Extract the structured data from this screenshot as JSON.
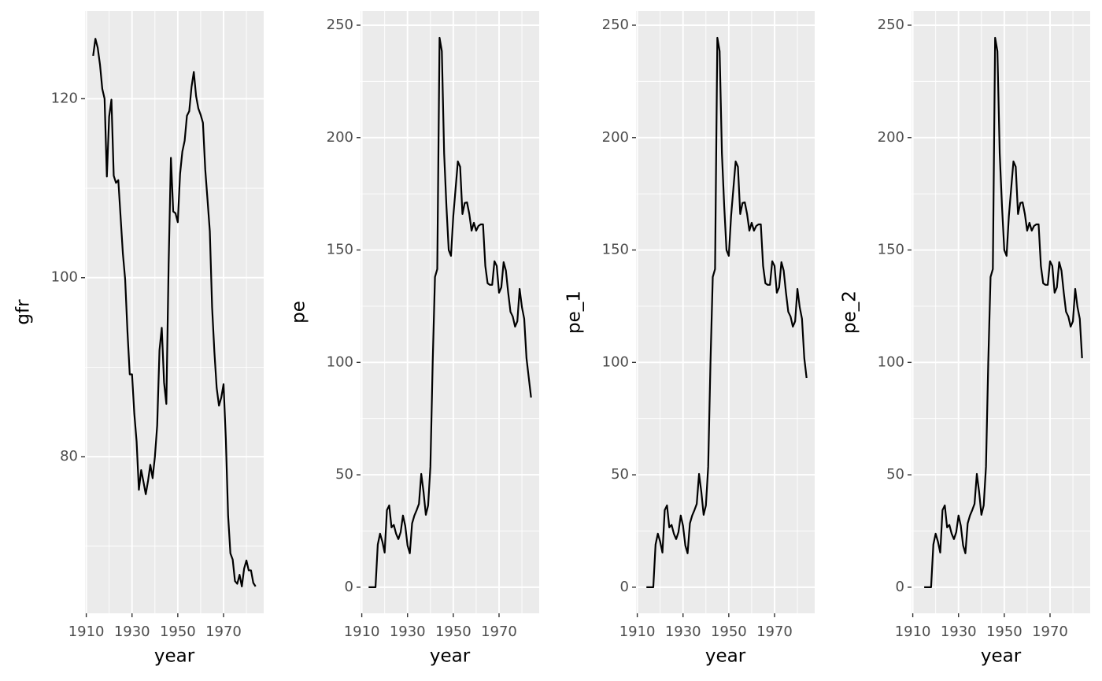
{
  "chart_data": [
    {
      "type": "line",
      "xlabel": "year",
      "ylabel": "gfr",
      "x": [
        1913,
        1914,
        1915,
        1916,
        1917,
        1918,
        1919,
        1920,
        1921,
        1922,
        1923,
        1924,
        1925,
        1926,
        1927,
        1928,
        1929,
        1930,
        1931,
        1932,
        1933,
        1934,
        1935,
        1936,
        1937,
        1938,
        1939,
        1940,
        1941,
        1942,
        1943,
        1944,
        1945,
        1946,
        1947,
        1948,
        1949,
        1950,
        1951,
        1952,
        1953,
        1954,
        1955,
        1956,
        1957,
        1958,
        1959,
        1960,
        1961,
        1962,
        1963,
        1964,
        1965,
        1966,
        1967,
        1968,
        1969,
        1970,
        1971,
        1972,
        1973,
        1974,
        1975,
        1976,
        1977,
        1978,
        1979,
        1980,
        1981,
        1982,
        1983,
        1984
      ],
      "values": [
        124.8,
        126.7,
        125.7,
        123.8,
        121.1,
        120,
        111.3,
        118,
        119.9,
        111.4,
        110.6,
        110.9,
        106.8,
        102.7,
        99.8,
        94,
        89.2,
        89.2,
        84.8,
        81.7,
        76.3,
        78.5,
        77.2,
        75.8,
        77.3,
        79.1,
        77.6,
        80,
        83.5,
        91.9,
        94.4,
        88.3,
        85.9,
        101.5,
        113.4,
        107.4,
        107.2,
        106.2,
        111.6,
        114.1,
        115.3,
        118.1,
        118.6,
        121.3,
        123,
        120.3,
        118.9,
        118.2,
        117.3,
        112.1,
        108.7,
        105.2,
        96.7,
        91.7,
        87.7,
        85.7,
        86.6,
        88.1,
        82,
        73.4,
        69.2,
        68.5,
        66.1,
        65.8,
        66.8,
        65.5,
        67.5,
        68.4,
        67.3,
        67.3,
        65.9,
        65.5
      ],
      "color": "#000000",
      "xlim": [
        1909.45,
        1987.55
      ],
      "xticks": [
        1910,
        1930,
        1950,
        1970
      ],
      "ylim": [
        62.5,
        129.8
      ],
      "yticks": [
        80,
        100,
        120
      ],
      "grid": true
    },
    {
      "type": "line",
      "xlabel": "year",
      "ylabel": "pe",
      "x": [
        1913,
        1914,
        1915,
        1916,
        1917,
        1918,
        1919,
        1920,
        1921,
        1922,
        1923,
        1924,
        1925,
        1926,
        1927,
        1928,
        1929,
        1930,
        1931,
        1932,
        1933,
        1934,
        1935,
        1936,
        1937,
        1938,
        1939,
        1940,
        1941,
        1942,
        1943,
        1944,
        1945,
        1946,
        1947,
        1948,
        1949,
        1950,
        1951,
        1952,
        1953,
        1954,
        1955,
        1956,
        1957,
        1958,
        1959,
        1960,
        1961,
        1962,
        1963,
        1964,
        1965,
        1966,
        1967,
        1968,
        1969,
        1970,
        1971,
        1972,
        1973,
        1974,
        1975,
        1976,
        1977,
        1978,
        1979,
        1980,
        1981,
        1982,
        1983,
        1984
      ],
      "values": [
        0,
        0,
        0,
        0,
        19,
        23.8,
        20.3,
        15.4,
        34.3,
        36.4,
        26.6,
        27.7,
        23.8,
        21.4,
        24.5,
        31.9,
        27.3,
        18.6,
        15.1,
        28.4,
        31.9,
        34.3,
        37.1,
        50.4,
        42.4,
        32.2,
        36.4,
        53.6,
        100,
        138,
        141.5,
        244.4,
        238.4,
        193,
        169.5,
        150,
        147.4,
        165,
        177.2,
        189.4,
        187,
        166,
        170.9,
        171.2,
        166,
        158.6,
        162.1,
        158.6,
        160.7,
        161.4,
        161.4,
        142.9,
        135.2,
        134.5,
        134.5,
        145,
        142.9,
        131,
        133.4,
        144.6,
        140.8,
        131,
        122.5,
        120.4,
        115.9,
        118.3,
        132.7,
        124.6,
        119.4,
        101.9,
        93.1,
        84.4
      ],
      "color": "#000000",
      "xlim": [
        1909.45,
        1987.55
      ],
      "xticks": [
        1910,
        1930,
        1950,
        1970
      ],
      "ylim": [
        -11.6,
        256.3
      ],
      "yticks": [
        0,
        50,
        100,
        150,
        200,
        250
      ],
      "grid": true
    },
    {
      "type": "line",
      "xlabel": "year",
      "ylabel": "pe_1",
      "x": [
        1913,
        1914,
        1915,
        1916,
        1917,
        1918,
        1919,
        1920,
        1921,
        1922,
        1923,
        1924,
        1925,
        1926,
        1927,
        1928,
        1929,
        1930,
        1931,
        1932,
        1933,
        1934,
        1935,
        1936,
        1937,
        1938,
        1939,
        1940,
        1941,
        1942,
        1943,
        1944,
        1945,
        1946,
        1947,
        1948,
        1949,
        1950,
        1951,
        1952,
        1953,
        1954,
        1955,
        1956,
        1957,
        1958,
        1959,
        1960,
        1961,
        1962,
        1963,
        1964,
        1965,
        1966,
        1967,
        1968,
        1969,
        1970,
        1971,
        1972,
        1973,
        1974,
        1975,
        1976,
        1977,
        1978,
        1979,
        1980,
        1981,
        1982,
        1983,
        1984
      ],
      "values": [
        null,
        0,
        0,
        0,
        0,
        19,
        23.8,
        20.3,
        15.4,
        34.3,
        36.4,
        26.6,
        27.7,
        23.8,
        21.4,
        24.5,
        31.9,
        27.3,
        18.6,
        15.1,
        28.4,
        31.9,
        34.3,
        37.1,
        50.4,
        42.4,
        32.2,
        36.4,
        53.6,
        100,
        138,
        141.5,
        244.4,
        238.4,
        193,
        169.5,
        150,
        147.4,
        165,
        177.2,
        189.4,
        187,
        166,
        170.9,
        171.2,
        166,
        158.6,
        162.1,
        158.6,
        160.7,
        161.4,
        161.4,
        142.9,
        135.2,
        134.5,
        134.5,
        145,
        142.9,
        131,
        133.4,
        144.6,
        140.8,
        131,
        122.5,
        120.4,
        115.9,
        118.3,
        132.7,
        124.6,
        119.4,
        101.9,
        93.1
      ],
      "color": "#000000",
      "xlim": [
        1909.45,
        1987.55
      ],
      "xticks": [
        1910,
        1930,
        1950,
        1970
      ],
      "ylim": [
        -11.6,
        256.3
      ],
      "yticks": [
        0,
        50,
        100,
        150,
        200,
        250
      ],
      "grid": true
    },
    {
      "type": "line",
      "xlabel": "year",
      "ylabel": "pe_2",
      "x": [
        1913,
        1914,
        1915,
        1916,
        1917,
        1918,
        1919,
        1920,
        1921,
        1922,
        1923,
        1924,
        1925,
        1926,
        1927,
        1928,
        1929,
        1930,
        1931,
        1932,
        1933,
        1934,
        1935,
        1936,
        1937,
        1938,
        1939,
        1940,
        1941,
        1942,
        1943,
        1944,
        1945,
        1946,
        1947,
        1948,
        1949,
        1950,
        1951,
        1952,
        1953,
        1954,
        1955,
        1956,
        1957,
        1958,
        1959,
        1960,
        1961,
        1962,
        1963,
        1964,
        1965,
        1966,
        1967,
        1968,
        1969,
        1970,
        1971,
        1972,
        1973,
        1974,
        1975,
        1976,
        1977,
        1978,
        1979,
        1980,
        1981,
        1982,
        1983,
        1984
      ],
      "values": [
        null,
        null,
        0,
        0,
        0,
        0,
        19,
        23.8,
        20.3,
        15.4,
        34.3,
        36.4,
        26.6,
        27.7,
        23.8,
        21.4,
        24.5,
        31.9,
        27.3,
        18.6,
        15.1,
        28.4,
        31.9,
        34.3,
        37.1,
        50.4,
        42.4,
        32.2,
        36.4,
        53.6,
        100,
        138,
        141.5,
        244.4,
        238.4,
        193,
        169.5,
        150,
        147.4,
        165,
        177.2,
        189.4,
        187,
        166,
        170.9,
        171.2,
        166,
        158.6,
        162.1,
        158.6,
        160.7,
        161.4,
        161.4,
        142.9,
        135.2,
        134.5,
        134.5,
        145,
        142.9,
        131,
        133.4,
        144.6,
        140.8,
        131,
        122.5,
        120.4,
        115.9,
        118.3,
        132.7,
        124.6,
        119.4,
        101.9
      ],
      "color": "#000000",
      "xlim": [
        1909.45,
        1987.55
      ],
      "xticks": [
        1910,
        1930,
        1950,
        1970
      ],
      "ylim": [
        -11.6,
        256.3
      ],
      "yticks": [
        0,
        50,
        100,
        150,
        200,
        250
      ],
      "grid": true
    }
  ]
}
